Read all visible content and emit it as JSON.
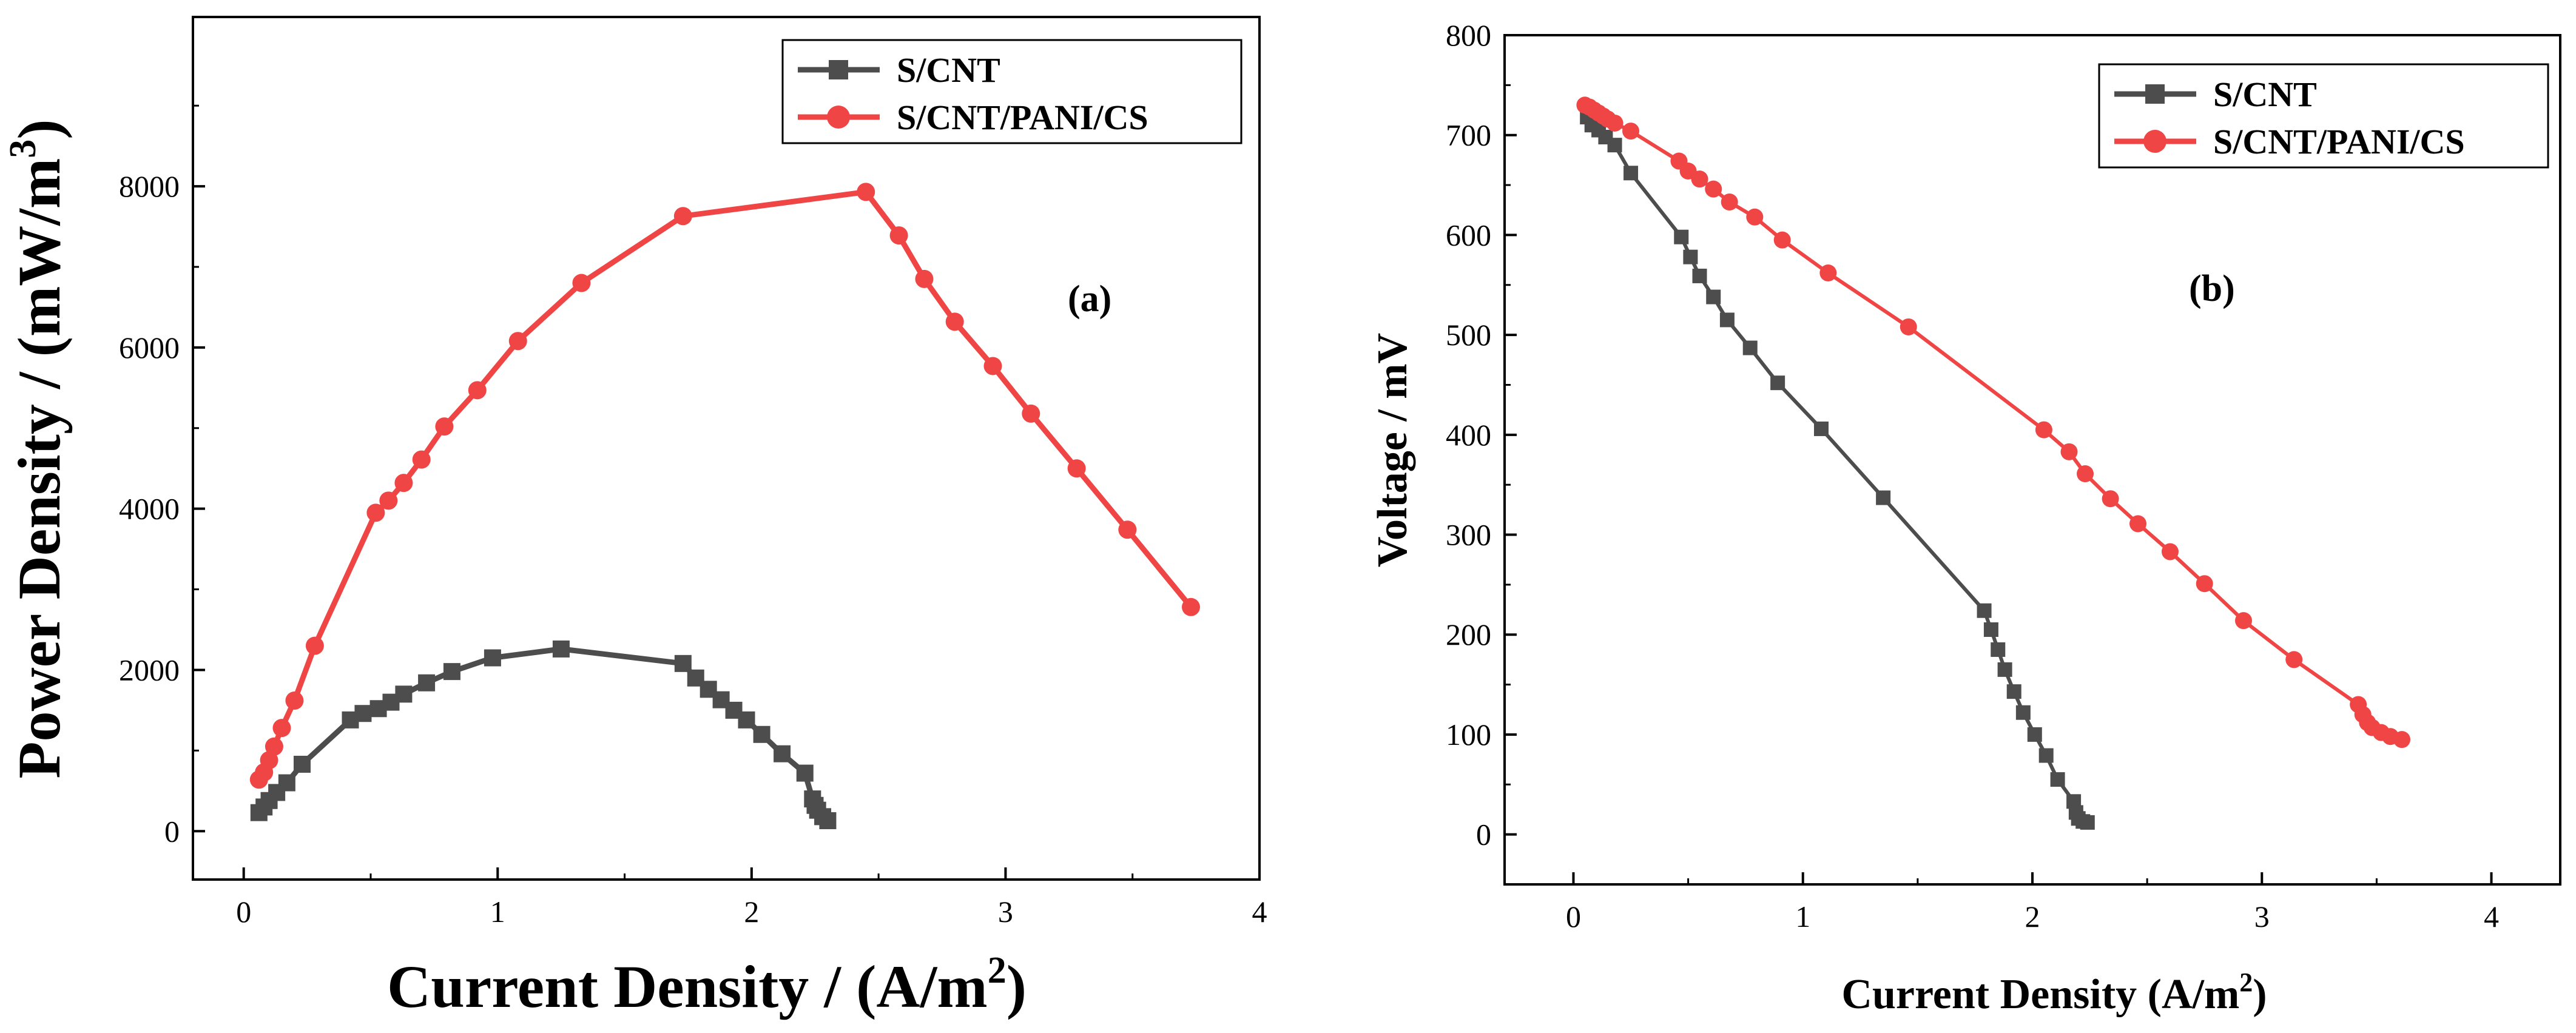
{
  "figure": {
    "description_labels": [
      "(a)",
      "(b)"
    ]
  },
  "chart_data": [
    {
      "type": "line",
      "panel_label": "(a)",
      "title": "",
      "xlabel": "Current Density / (A/m",
      "xlabel_sup": "2",
      "xlabel_end": ")",
      "ylabel": "Power Density / (mW/m",
      "ylabel_sup": "3",
      "ylabel_end": ")",
      "xlim": [
        -0.2,
        4.0
      ],
      "ylim": [
        -600,
        10100
      ],
      "xticks": [
        0,
        1,
        2,
        3,
        4
      ],
      "yticks": [
        0,
        2000,
        4000,
        6000,
        8000
      ],
      "legend_position": "top-right",
      "series": [
        {
          "name": "S/CNT",
          "color": "#4d4d4d",
          "marker": "square",
          "x": [
            0.06,
            0.08,
            0.1,
            0.13,
            0.17,
            0.23,
            0.42,
            0.47,
            0.53,
            0.58,
            0.63,
            0.72,
            0.82,
            0.98,
            1.25,
            1.73,
            1.78,
            1.83,
            1.88,
            1.93,
            1.98,
            2.04,
            2.12,
            2.21,
            2.24,
            2.25,
            2.26,
            2.28,
            2.3
          ],
          "y": [
            230,
            300,
            380,
            480,
            600,
            830,
            1380,
            1460,
            1520,
            1600,
            1700,
            1840,
            1980,
            2150,
            2260,
            2080,
            1900,
            1760,
            1630,
            1500,
            1380,
            1200,
            960,
            720,
            400,
            320,
            260,
            180,
            130
          ]
        },
        {
          "name": "S/CNT/PANI/CS",
          "color": "#f04545",
          "marker": "circle",
          "x": [
            0.06,
            0.08,
            0.1,
            0.12,
            0.15,
            0.2,
            0.28,
            0.52,
            0.57,
            0.63,
            0.7,
            0.79,
            0.92,
            1.08,
            1.33,
            1.73,
            2.45,
            2.58,
            2.68,
            2.8,
            2.95,
            3.1,
            3.28,
            3.48,
            3.73
          ],
          "y": [
            640,
            730,
            880,
            1050,
            1280,
            1620,
            2300,
            3950,
            4100,
            4320,
            4610,
            5020,
            5470,
            6080,
            6800,
            7630,
            7930,
            7390,
            6850,
            6320,
            5770,
            5180,
            4500,
            3740,
            2780
          ]
        }
      ]
    },
    {
      "type": "line",
      "panel_label": "(b)",
      "title": "",
      "xlabel": "Current Density (A/m",
      "xlabel_sup": "2",
      "xlabel_end": ")",
      "ylabel": "Voltage / mV",
      "xlim": [
        -0.3,
        4.3
      ],
      "ylim": [
        -50,
        800
      ],
      "xticks": [
        0,
        1,
        2,
        3,
        4
      ],
      "yticks": [
        0,
        100,
        200,
        300,
        400,
        500,
        600,
        700,
        800
      ],
      "legend_position": "top-right",
      "series": [
        {
          "name": "S/CNT",
          "color": "#4d4d4d",
          "marker": "square",
          "x": [
            0.06,
            0.08,
            0.11,
            0.14,
            0.18,
            0.25,
            0.47,
            0.51,
            0.55,
            0.61,
            0.67,
            0.77,
            0.89,
            1.08,
            1.35,
            1.79,
            1.82,
            1.85,
            1.88,
            1.92,
            1.96,
            2.01,
            2.06,
            2.11,
            2.18,
            2.19,
            2.2,
            2.22,
            2.24
          ],
          "y": [
            718,
            710,
            705,
            698,
            690,
            662,
            598,
            578,
            559,
            538,
            515,
            487,
            452,
            406,
            337,
            224,
            205,
            185,
            165,
            143,
            122,
            100,
            79,
            55,
            33,
            22,
            16,
            13,
            12
          ]
        },
        {
          "name": "S/CNT/PANI/CS",
          "color": "#f04545",
          "marker": "circle",
          "x": [
            0.05,
            0.07,
            0.09,
            0.11,
            0.13,
            0.15,
            0.18,
            0.25,
            0.46,
            0.5,
            0.55,
            0.61,
            0.68,
            0.79,
            0.91,
            1.11,
            1.46,
            2.05,
            2.16,
            2.23,
            2.34,
            2.46,
            2.6,
            2.75,
            2.92,
            3.14,
            3.42,
            3.44,
            3.46,
            3.48,
            3.52,
            3.56,
            3.61
          ],
          "y": [
            730,
            728,
            725,
            722,
            719,
            716,
            712,
            704,
            674,
            664,
            656,
            646,
            633,
            618,
            595,
            562,
            508,
            405,
            383,
            361,
            336,
            311,
            283,
            251,
            214,
            175,
            130,
            120,
            112,
            107,
            102,
            98,
            95
          ]
        }
      ]
    }
  ]
}
